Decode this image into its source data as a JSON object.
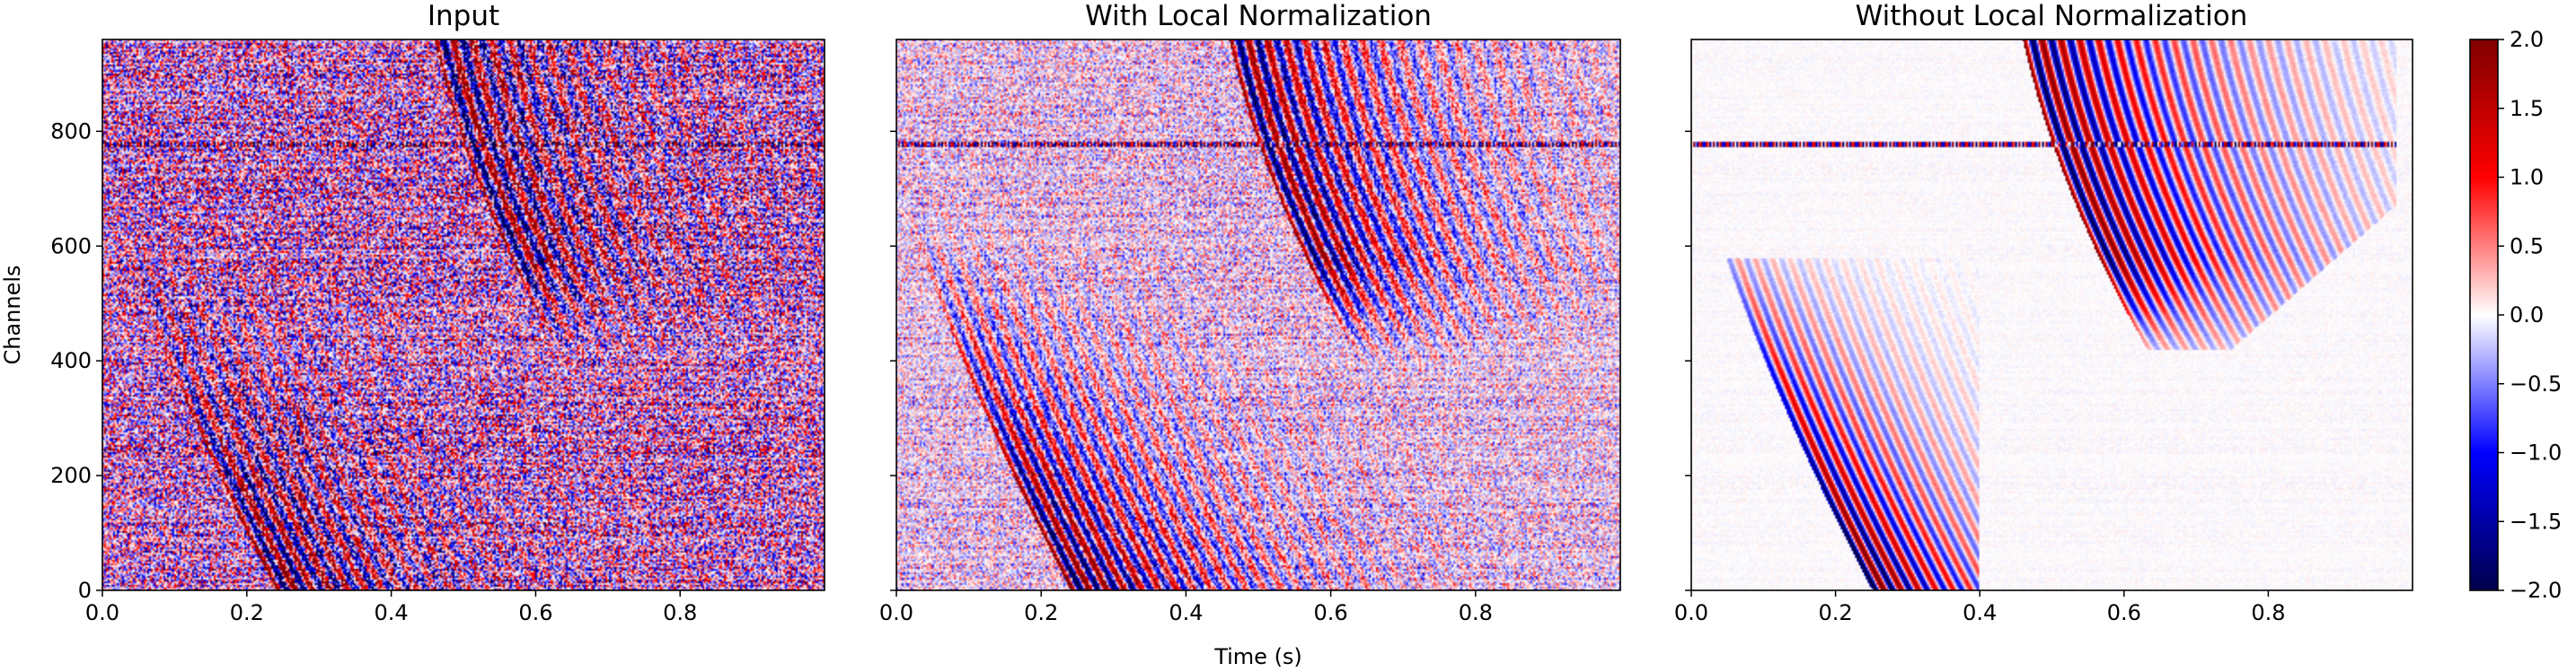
{
  "chart_data": [
    {
      "type": "heatmap",
      "title": "Input",
      "x_range": [
        0.0,
        1.0
      ],
      "y_range": [
        0,
        960
      ],
      "x_ticks": [
        0.0,
        0.2,
        0.4,
        0.6,
        0.8
      ],
      "x_tick_labels": [
        "0.0",
        "0.2",
        "0.4",
        "0.6",
        "0.8"
      ],
      "y_ticks": [
        0,
        200,
        400,
        600,
        800
      ],
      "y_tick_labels": [
        "0",
        "200",
        "400",
        "600",
        "800"
      ],
      "ylabel": "Channels",
      "features": {
        "noise": 0.95,
        "coherence": 0.75,
        "window": false
      }
    },
    {
      "type": "heatmap",
      "title": "With Local Normalization",
      "x_range": [
        0.0,
        1.0
      ],
      "y_range": [
        0,
        960
      ],
      "x_ticks": [
        0.0,
        0.2,
        0.4,
        0.6,
        0.8
      ],
      "x_tick_labels": [
        "0.0",
        "0.2",
        "0.4",
        "0.6",
        "0.8"
      ],
      "y_ticks": [
        0,
        200,
        400,
        600,
        800
      ],
      "xlabel": "Time (s)",
      "features": {
        "noise": 0.45,
        "coherence": 0.9,
        "window": false
      }
    },
    {
      "type": "heatmap",
      "title": "Without Local Normalization",
      "x_range": [
        0.0,
        1.0
      ],
      "y_range": [
        0,
        960
      ],
      "x_ticks": [
        0.0,
        0.2,
        0.4,
        0.6,
        0.8
      ],
      "x_tick_labels": [
        "0.0",
        "0.2",
        "0.4",
        "0.6",
        "0.8"
      ],
      "y_ticks": [
        0,
        200,
        400,
        600,
        800
      ],
      "features": {
        "noise": 0.05,
        "coherence": 1.0,
        "window": true
      }
    }
  ],
  "colorbar": {
    "colormap": "seismic",
    "range": [
      -2.0,
      2.0
    ],
    "ticks": [
      2.0,
      1.5,
      1.0,
      0.5,
      0.0,
      -0.5,
      -1.0,
      -1.5,
      -2.0
    ],
    "tick_labels": [
      "2.0",
      "1.5",
      "1.0",
      "0.5",
      "0.0",
      "−0.5",
      "−1.0",
      "−1.5",
      "−2.0"
    ],
    "colors": {
      "low": "#00004c",
      "mid_low": "#0000ff",
      "center": "#ffffff",
      "mid_high": "#ff0000",
      "high": "#800000"
    }
  }
}
